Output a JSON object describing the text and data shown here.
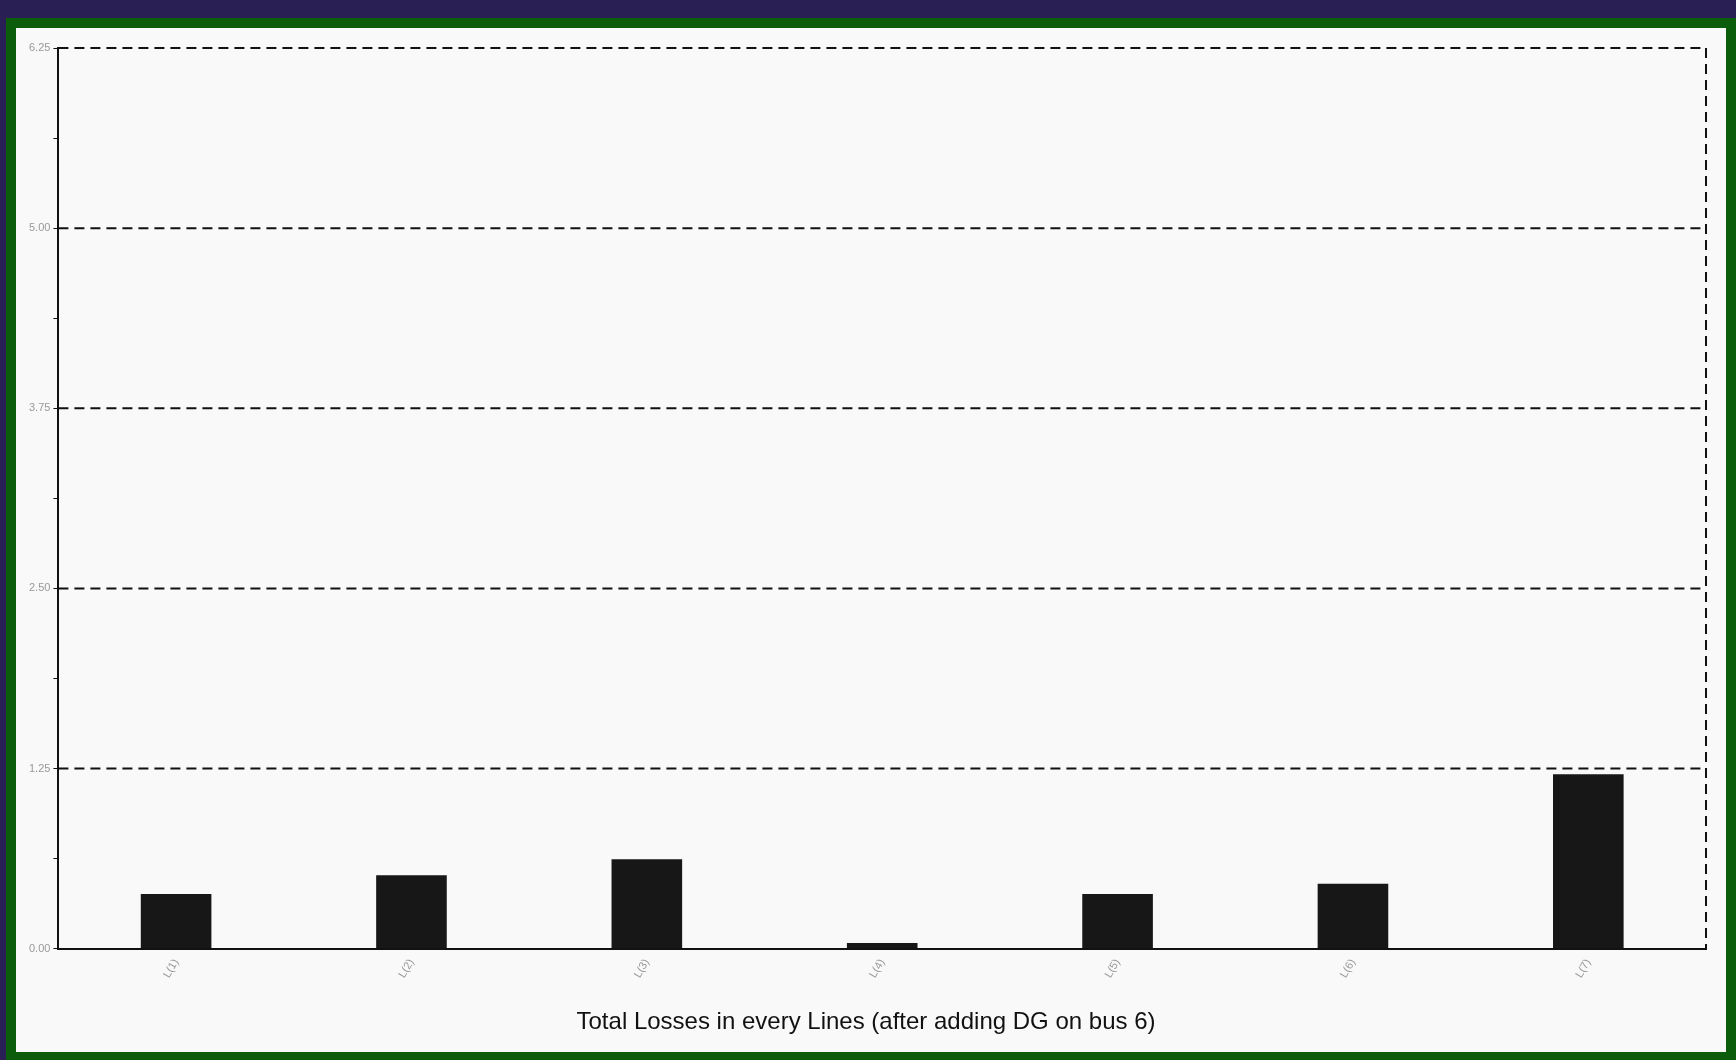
{
  "chart_data": {
    "type": "bar",
    "xlabel": "Total Losses in every Lines (after adding DG on bus 6)",
    "categories": [
      "L(1)",
      "L(2)",
      "L(3)",
      "L(4)",
      "L(5)",
      "L(6)",
      "L(7)"
    ],
    "values": [
      0.38,
      0.51,
      0.62,
      0.04,
      0.38,
      0.45,
      1.21
    ],
    "color": "#171717",
    "ylim": [
      0,
      6.25
    ],
    "yticks": [
      {
        "value": 0,
        "label": "0.00"
      },
      {
        "value": 0.625,
        "label": null
      },
      {
        "value": 1.25,
        "label": "1.25"
      },
      {
        "value": 1.875,
        "label": null
      },
      {
        "value": 2.5,
        "label": "2.50"
      },
      {
        "value": 3.125,
        "label": null
      },
      {
        "value": 3.75,
        "label": "3.75"
      },
      {
        "value": 4.375,
        "label": null
      },
      {
        "value": 5,
        "label": "5.00"
      },
      {
        "value": 5.625,
        "label": null
      },
      {
        "value": 6.25,
        "label": "6.25"
      }
    ],
    "grid": "y",
    "legend": false
  }
}
